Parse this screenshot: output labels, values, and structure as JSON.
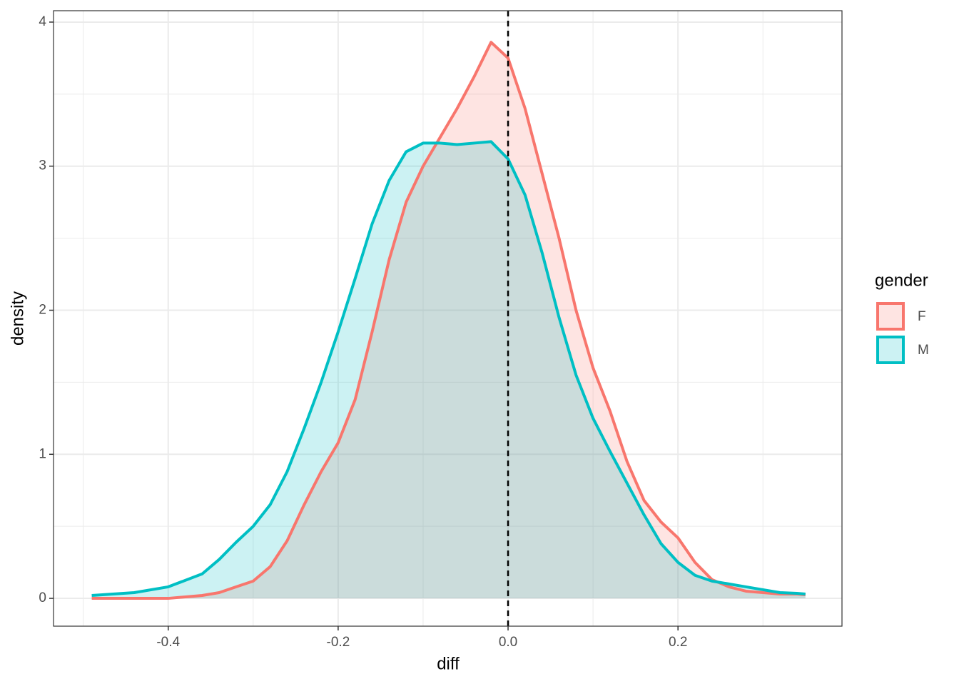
{
  "chart_data": {
    "type": "density",
    "x_label": "diff",
    "y_label": "density",
    "x": [
      -0.49,
      -0.44,
      -0.4,
      -0.36,
      -0.34,
      -0.32,
      -0.3,
      -0.28,
      -0.26,
      -0.24,
      -0.22,
      -0.2,
      -0.18,
      -0.16,
      -0.14,
      -0.12,
      -0.1,
      -0.08,
      -0.06,
      -0.04,
      -0.02,
      0,
      0.02,
      0.04,
      0.06,
      0.08,
      0.1,
      0.12,
      0.14,
      0.16,
      0.18,
      0.2,
      0.22,
      0.24,
      0.26,
      0.28,
      0.3,
      0.32,
      0.34,
      0.35
    ],
    "series": [
      {
        "name": "F",
        "color": "#F8766D",
        "values": [
          0,
          0,
          0,
          0.02,
          0.04,
          0.08,
          0.12,
          0.22,
          0.4,
          0.65,
          0.88,
          1.08,
          1.38,
          1.85,
          2.35,
          2.75,
          3.0,
          3.2,
          3.4,
          3.62,
          3.86,
          3.75,
          3.4,
          2.95,
          2.5,
          2.0,
          1.6,
          1.3,
          0.95,
          0.68,
          0.53,
          0.42,
          0.25,
          0.13,
          0.08,
          0.05,
          0.04,
          0.03,
          0.03,
          0.025
        ]
      },
      {
        "name": "M",
        "color": "#00BFC4",
        "values": [
          0.02,
          0.04,
          0.08,
          0.17,
          0.27,
          0.39,
          0.5,
          0.65,
          0.88,
          1.18,
          1.5,
          1.85,
          2.22,
          2.6,
          2.9,
          3.1,
          3.16,
          3.16,
          3.15,
          3.16,
          3.17,
          3.05,
          2.8,
          2.4,
          1.95,
          1.55,
          1.25,
          1.02,
          0.8,
          0.58,
          0.38,
          0.25,
          0.16,
          0.12,
          0.1,
          0.08,
          0.06,
          0.04,
          0.035,
          0.03
        ]
      }
    ],
    "legend_title": "gender",
    "legend": "right",
    "vline": 0,
    "xlim": [
      -0.535,
      0.393
    ],
    "ylim": [
      -0.193,
      4.079
    ],
    "xticks": [
      -0.4,
      -0.2,
      {
        "value": 0,
        "label": "0.0"
      },
      0.2
    ],
    "yticks": [
      0,
      1,
      2,
      3,
      4
    ],
    "grid": true
  }
}
